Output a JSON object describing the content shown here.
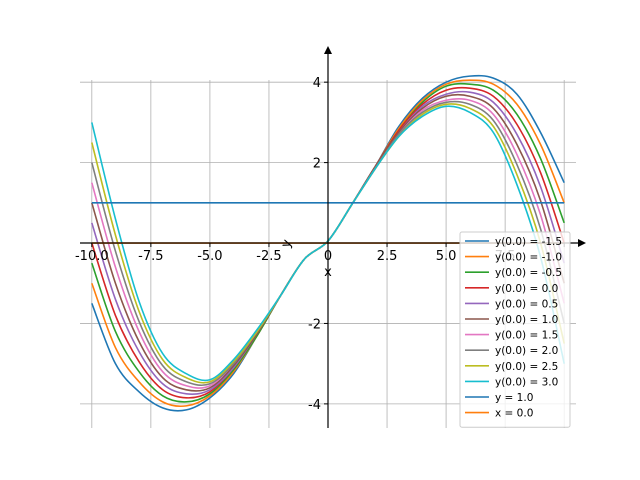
{
  "chart_data": {
    "type": "line",
    "xlabel": "x",
    "ylabel": "y",
    "xlim": [
      -10.5,
      10.5
    ],
    "ylim": [
      -4.6,
      4.8
    ],
    "x_ticks": [
      -10.0,
      -7.5,
      -5.0,
      -2.5,
      0.0,
      2.5,
      5.0,
      7.5,
      10.0
    ],
    "x_tick_labels": [
      "-10.0",
      "-7.5",
      "-5.0",
      "-2.5",
      "0",
      "2.5",
      "5.0",
      "7.5",
      ""
    ],
    "y_ticks": [
      -4,
      -2,
      0,
      2,
      4
    ],
    "y_tick_labels": [
      "-4",
      "-2",
      "0",
      "2",
      "4"
    ],
    "grid": true,
    "legend_placement": "lower-right",
    "colors": [
      "#1f77b4",
      "#ff7f0e",
      "#2ca02c",
      "#d62728",
      "#9467bd",
      "#8c564b",
      "#e377c2",
      "#7f7f7f",
      "#bcbd22",
      "#17becf"
    ],
    "x_values": [
      -10,
      -9,
      -8,
      -7,
      -6,
      -5,
      -4,
      -3,
      -2,
      -1,
      0,
      1,
      2,
      3,
      4,
      5,
      6,
      7,
      8,
      9,
      10
    ],
    "series": [
      {
        "name": "y(0.0) = -1.5",
        "values": [
          -1.5,
          -3.0,
          -3.7,
          -4.1,
          -4.15,
          -3.85,
          -3.25,
          -2.3,
          -1.3,
          -0.4,
          0.05,
          0.95,
          1.9,
          2.9,
          3.6,
          4.0,
          4.15,
          4.1,
          3.7,
          2.75,
          1.5
        ]
      },
      {
        "name": "y(0.0) = -1.0",
        "values": [
          -1.0,
          -2.6,
          -3.45,
          -3.95,
          -4.05,
          -3.8,
          -3.2,
          -2.3,
          -1.3,
          -0.4,
          0.05,
          0.95,
          1.9,
          2.85,
          3.55,
          3.95,
          4.05,
          3.95,
          3.45,
          2.45,
          1.0
        ]
      },
      {
        "name": "y(0.0) = -0.5",
        "values": [
          -0.5,
          -2.2,
          -3.2,
          -3.8,
          -3.95,
          -3.75,
          -3.15,
          -2.3,
          -1.3,
          -0.4,
          0.05,
          0.95,
          1.9,
          2.8,
          3.5,
          3.9,
          3.95,
          3.8,
          3.2,
          2.1,
          0.5
        ]
      },
      {
        "name": "y(0.0) = 0.0",
        "values": [
          0.0,
          -1.8,
          -2.95,
          -3.65,
          -3.85,
          -3.7,
          -3.1,
          -2.25,
          -1.3,
          -0.4,
          0.05,
          0.95,
          1.9,
          2.8,
          3.45,
          3.8,
          3.85,
          3.65,
          2.95,
          1.75,
          0.0
        ]
      },
      {
        "name": "y(0.0) = 0.5",
        "values": [
          0.5,
          -1.4,
          -2.7,
          -3.5,
          -3.75,
          -3.65,
          -3.1,
          -2.25,
          -1.3,
          -0.4,
          0.05,
          0.95,
          1.9,
          2.75,
          3.4,
          3.7,
          3.75,
          3.5,
          2.7,
          1.4,
          -0.5
        ]
      },
      {
        "name": "y(0.0) = 1.0",
        "values": [
          1.0,
          -1.0,
          -2.45,
          -3.35,
          -3.65,
          -3.6,
          -3.05,
          -2.25,
          -1.3,
          -0.4,
          0.05,
          0.95,
          1.9,
          2.75,
          3.35,
          3.65,
          3.65,
          3.35,
          2.45,
          1.05,
          -1.0
        ]
      },
      {
        "name": "y(0.0) = 1.5",
        "values": [
          1.5,
          -0.6,
          -2.2,
          -3.2,
          -3.55,
          -3.55,
          -3.0,
          -2.2,
          -1.3,
          -0.4,
          0.05,
          0.95,
          1.85,
          2.7,
          3.3,
          3.55,
          3.55,
          3.2,
          2.2,
          0.7,
          -1.5
        ]
      },
      {
        "name": "y(0.0) = 2.0",
        "values": [
          2.0,
          -0.2,
          -1.95,
          -3.05,
          -3.45,
          -3.5,
          -3.0,
          -2.2,
          -1.3,
          -0.4,
          0.05,
          0.95,
          1.85,
          2.7,
          3.25,
          3.5,
          3.45,
          3.05,
          1.95,
          0.35,
          -2.0
        ]
      },
      {
        "name": "y(0.0) = 2.5",
        "values": [
          2.5,
          0.2,
          -1.7,
          -2.9,
          -3.35,
          -3.45,
          -2.95,
          -2.2,
          -1.3,
          -0.4,
          0.05,
          0.95,
          1.85,
          2.65,
          3.2,
          3.45,
          3.35,
          2.9,
          1.7,
          0.0,
          -2.5
        ]
      },
      {
        "name": "y(0.0) = 3.0",
        "values": [
          3.0,
          0.6,
          -1.45,
          -2.75,
          -3.25,
          -3.4,
          -2.9,
          -2.15,
          -1.3,
          -0.4,
          0.05,
          0.95,
          1.85,
          2.65,
          3.15,
          3.4,
          3.25,
          2.75,
          1.45,
          -0.35,
          -3.0
        ]
      }
    ],
    "lines": [
      {
        "name": "y = 1.0",
        "kind": "horizontal",
        "value": 1.0,
        "color": "#1f77b4"
      },
      {
        "name": "x = 0.0",
        "kind": "horizontal",
        "value": 0.0,
        "color": "#ff7f0e"
      }
    ]
  }
}
